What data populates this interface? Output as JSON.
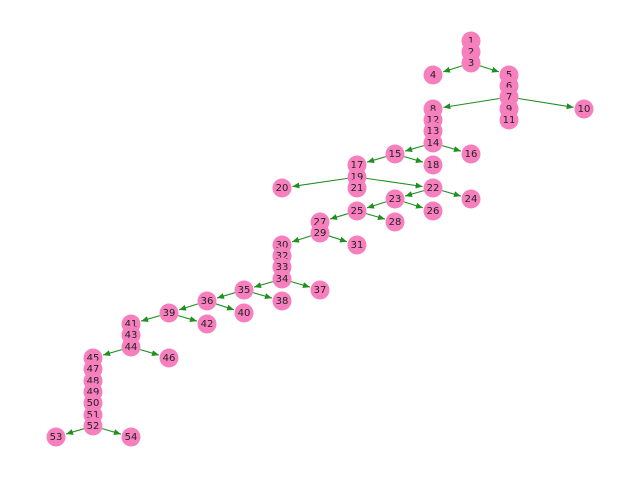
{
  "colors": {
    "node": "#f77fbe",
    "edge": "#1f8f1f",
    "label": "#222222",
    "background": "#ffffff"
  },
  "nodes": [
    "1",
    "2",
    "3",
    "4",
    "5",
    "6",
    "7",
    "8",
    "9",
    "10",
    "11",
    "12",
    "13",
    "14",
    "15",
    "16",
    "17",
    "18",
    "19",
    "20",
    "21",
    "22",
    "23",
    "24",
    "25",
    "26",
    "27",
    "28",
    "29",
    "30",
    "31",
    "32",
    "33",
    "34",
    "35",
    "36",
    "37",
    "38",
    "39",
    "40",
    "41",
    "42",
    "43",
    "44",
    "45",
    "46",
    "47",
    "48",
    "49",
    "50",
    "51",
    "52",
    "53",
    "54"
  ],
  "edges": [
    [
      "3",
      "4"
    ],
    [
      "3",
      "5"
    ],
    [
      "7",
      "8"
    ],
    [
      "7",
      "10"
    ],
    [
      "14",
      "15"
    ],
    [
      "14",
      "16"
    ],
    [
      "15",
      "17"
    ],
    [
      "15",
      "18"
    ],
    [
      "19",
      "20"
    ],
    [
      "19",
      "22"
    ],
    [
      "22",
      "23"
    ],
    [
      "22",
      "24"
    ],
    [
      "23",
      "25"
    ],
    [
      "23",
      "26"
    ],
    [
      "25",
      "27"
    ],
    [
      "25",
      "28"
    ],
    [
      "29",
      "30"
    ],
    [
      "29",
      "31"
    ],
    [
      "34",
      "35"
    ],
    [
      "34",
      "37"
    ],
    [
      "35",
      "36"
    ],
    [
      "35",
      "38"
    ],
    [
      "36",
      "39"
    ],
    [
      "36",
      "40"
    ],
    [
      "39",
      "41"
    ],
    [
      "39",
      "42"
    ],
    [
      "44",
      "45"
    ],
    [
      "44",
      "46"
    ],
    [
      "52",
      "53"
    ],
    [
      "52",
      "54"
    ]
  ]
}
